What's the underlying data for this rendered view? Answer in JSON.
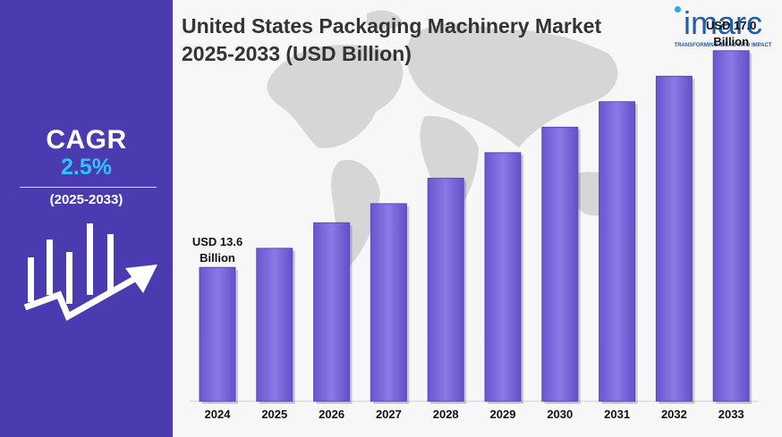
{
  "header": {
    "title_line1": "United States Packaging Machinery Market",
    "title_line2": "2025-2033 (USD Billion)"
  },
  "brand": {
    "logo": "imarc",
    "tagline": "TRANSFORMING IDEAS INTO IMPACT",
    "color": "#1f5ea8"
  },
  "sidebar": {
    "cagr_label": "CAGR",
    "cagr_value": "2.5%",
    "period": "(2025-2033)",
    "icon": "growth-chart-icon",
    "background": "#4b3bb0",
    "accent": "#2ec4ff"
  },
  "chart_data": {
    "type": "bar",
    "title": "United States Packaging Machinery Market 2025-2033 (USD Billion)",
    "categories": [
      "2024",
      "2025",
      "2026",
      "2027",
      "2028",
      "2029",
      "2030",
      "2031",
      "2032",
      "2033"
    ],
    "values": [
      13.6,
      13.9,
      14.3,
      14.6,
      15.0,
      15.4,
      15.8,
      16.2,
      16.6,
      17.0
    ],
    "ylim": [
      11.5,
      17.6
    ],
    "grid": false,
    "legend": "none",
    "bar_color": "#7b68dc",
    "annotations": [
      {
        "category": "2024",
        "line1": "USD 13.6",
        "line2": "Billion"
      },
      {
        "category": "2033",
        "line1": "USD 17.0",
        "line2": "Billion"
      }
    ]
  }
}
